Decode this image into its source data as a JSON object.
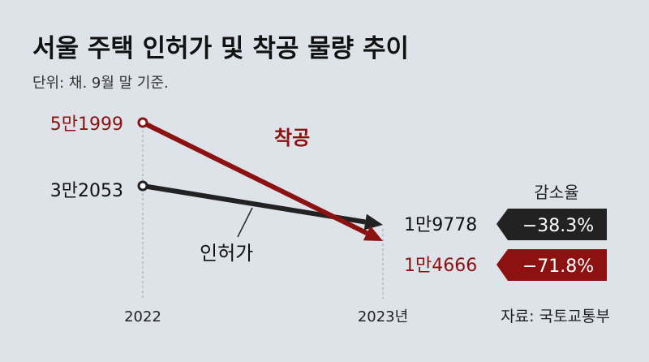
{
  "title": "서울 주택 인허가 및 착공 물량 추이",
  "subtitle": "단위: 채. 9월 말 기준.",
  "source": "자료: 국토교통부",
  "colors": {
    "background": "#dde3e8",
    "permits": "#222222",
    "starts": "#8b1210",
    "badge_text": "#ffffff"
  },
  "decline_header": "감소율",
  "chart_data": {
    "type": "line",
    "x": [
      "2022",
      "2023년"
    ],
    "series": [
      {
        "name": "착공",
        "values": [
          51999,
          14666
        ],
        "start_label": "5만1999",
        "end_label": "1만4666",
        "decline": "−71.8%",
        "color": "#8b1210"
      },
      {
        "name": "인허가",
        "values": [
          32053,
          19778
        ],
        "start_label": "3만2053",
        "end_label": "1만9778",
        "decline": "−38.3%",
        "color": "#222222"
      }
    ]
  }
}
